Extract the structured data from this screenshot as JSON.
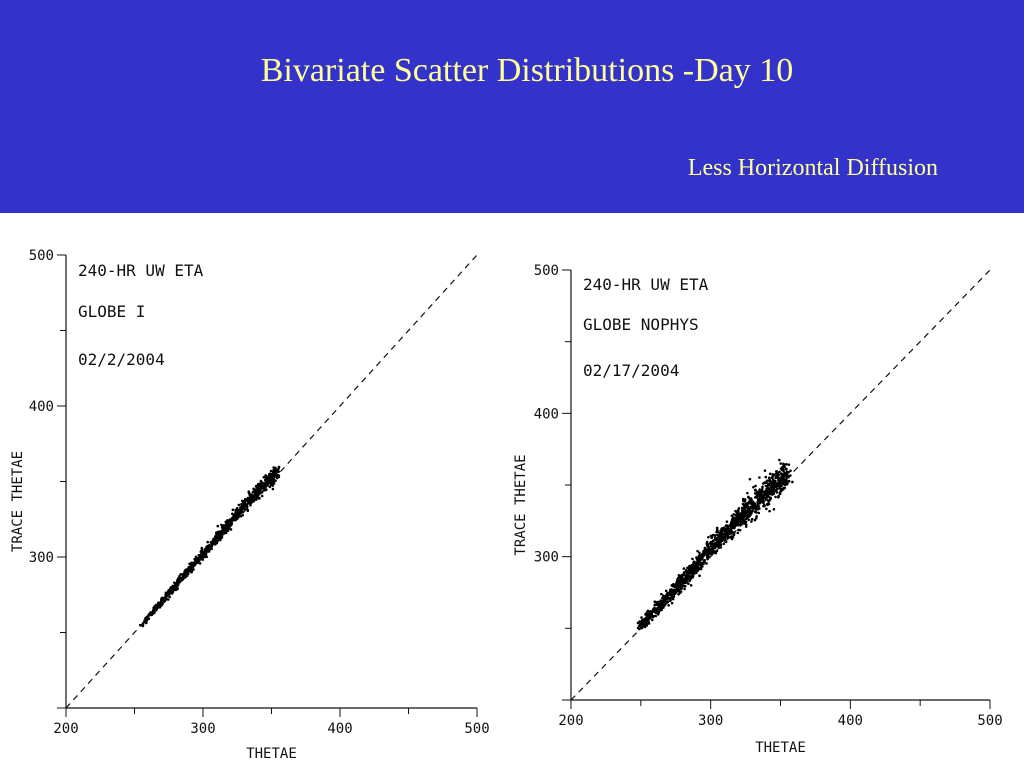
{
  "slide": {
    "title": "Bivariate Scatter Distributions -Day 10",
    "subtitle": "Less Horizontal Diffusion",
    "header_color": "#3333cc",
    "title_color": "#ffff99"
  },
  "chart_data": [
    {
      "type": "scatter",
      "title": "",
      "annotations": [
        "240-HR UW ETA",
        "GLOBE I",
        "02/2/2004"
      ],
      "xlabel": "THETAE",
      "ylabel": "TRACE THETAE",
      "xlim": [
        200,
        500
      ],
      "ylim": [
        200,
        500
      ],
      "x_tick_labels": [
        "200",
        "300",
        "400",
        "500"
      ],
      "y_tick_labels": [
        "300",
        "400",
        "500"
      ],
      "reference_line": "y = x (dashed)",
      "point_cloud": {
        "x_range": [
          255,
          355
        ],
        "band": [
          [
            255,
            255
          ],
          [
            280,
            281
          ],
          [
            300,
            302
          ],
          [
            320,
            323
          ],
          [
            340,
            344
          ],
          [
            355,
            357
          ]
        ],
        "spread": 2.5,
        "count": 900
      },
      "grid": false
    },
    {
      "type": "scatter",
      "title": "",
      "annotations": [
        "240-HR UW ETA",
        "GLOBE NOPHYS",
        "02/17/2004"
      ],
      "xlabel": "THETAE",
      "ylabel": "TRACE THETAE",
      "xlim": [
        200,
        500
      ],
      "ylim": [
        200,
        500
      ],
      "x_tick_labels": [
        "200",
        "300",
        "400",
        "500"
      ],
      "y_tick_labels": [
        "300",
        "400",
        "500"
      ],
      "reference_line": "y = x (dashed)",
      "point_cloud": {
        "x_range": [
          248,
          355
        ],
        "band": [
          [
            248,
            250
          ],
          [
            280,
            283
          ],
          [
            300,
            305
          ],
          [
            320,
            326
          ],
          [
            340,
            345
          ],
          [
            355,
            357
          ]
        ],
        "spread": 5,
        "count": 1300
      },
      "grid": false
    }
  ]
}
